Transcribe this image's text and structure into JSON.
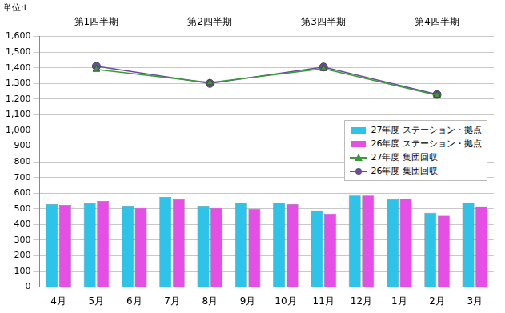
{
  "chart_data": {
    "type": "bar",
    "title": "単位:t",
    "categories": [
      "4月",
      "5月",
      "6月",
      "7月",
      "8月",
      "9月",
      "10月",
      "11月",
      "12月",
      "1月",
      "2月",
      "3月"
    ],
    "annotations": [
      {
        "text": "第1四半期",
        "category": "5月"
      },
      {
        "text": "第2四半期",
        "category": "8月"
      },
      {
        "text": "第3四半期",
        "category": "11月"
      },
      {
        "text": "第4四半期",
        "category": "2月"
      }
    ],
    "series": [
      {
        "name": "27年度 ステーション・拠点",
        "type": "bar",
        "color": "#2ec3e8",
        "values": [
          530,
          535,
          520,
          575,
          520,
          540,
          540,
          490,
          585,
          560,
          475,
          540
        ]
      },
      {
        "name": "26年度 ステーション・拠点",
        "type": "bar",
        "color": "#e64fe6",
        "values": [
          525,
          550,
          505,
          560,
          505,
          500,
          530,
          470,
          585,
          565,
          455,
          515
        ]
      },
      {
        "name": "27年度 集団回収",
        "type": "line",
        "color": "#3a9a3a",
        "marker": "triangle",
        "values": [
          null,
          1390,
          null,
          null,
          1305,
          null,
          null,
          1395,
          null,
          null,
          1225,
          null
        ]
      },
      {
        "name": "26年度 集団回収",
        "type": "line",
        "color": "#6a4c9c",
        "marker": "circle",
        "values": [
          null,
          1410,
          null,
          null,
          1300,
          null,
          null,
          1405,
          null,
          null,
          1230,
          null
        ]
      }
    ],
    "ylim": [
      0,
      1600
    ],
    "yticks": [
      0,
      100,
      200,
      300,
      400,
      500,
      600,
      700,
      800,
      900,
      {
        "value": 1000,
        "label": "1,000"
      },
      {
        "value": 1100,
        "label": "1,100"
      },
      {
        "value": 1200,
        "label": "1,200"
      },
      {
        "value": 1300,
        "label": "1,300"
      },
      {
        "value": 1400,
        "label": "1,400"
      },
      {
        "value": 1500,
        "label": "1,500"
      },
      {
        "value": 1600,
        "label": "1,600"
      }
    ],
    "grid": true,
    "legend": "right"
  }
}
